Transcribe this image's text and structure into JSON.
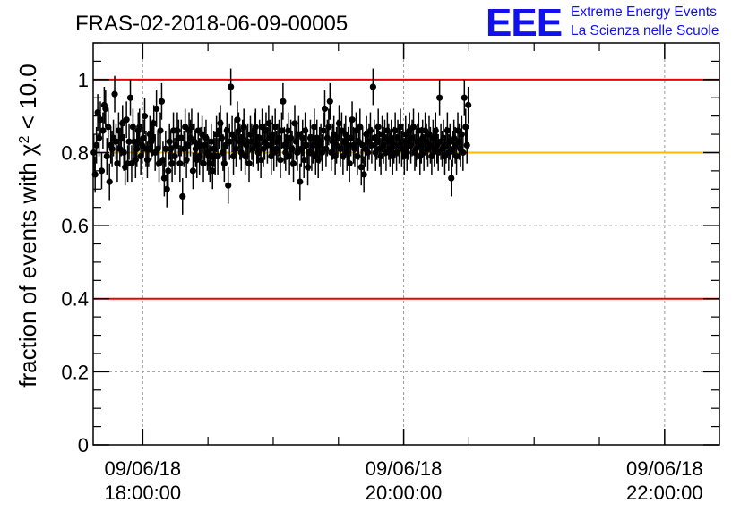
{
  "header": {
    "title": "FRAS-02-2018-06-09-00005",
    "logo_mark": "EEE",
    "logo_line1": "Extreme Energy Events",
    "logo_line2": "La Scienza nelle Scuole",
    "logo_color": "#1111ee"
  },
  "chart_data": {
    "type": "scatter",
    "title": "FRAS-02-2018-06-09-00005",
    "ylabel_prefix": "fraction of events with ",
    "ylabel_symbol": "χ",
    "ylabel_exp": "2",
    "ylabel_suffix": " < 10.0",
    "xlabel": "",
    "x_unit": "hours since 09/06/18 00:00 (time axis)",
    "xlim": [
      17.62,
      22.42
    ],
    "ylim": [
      0,
      1.1
    ],
    "grid": true,
    "x_ticks": [
      {
        "value": 18.0,
        "date": "09/06/18",
        "time": "18:00:00"
      },
      {
        "value": 20.0,
        "date": "09/06/18",
        "time": "20:00:00"
      },
      {
        "value": 22.0,
        "date": "09/06/18",
        "time": "22:00:00"
      }
    ],
    "x_minor_step": 0.5,
    "y_ticks": [
      {
        "value": 0,
        "label": "0"
      },
      {
        "value": 0.2,
        "label": "0.2"
      },
      {
        "value": 0.4,
        "label": "0.4"
      },
      {
        "value": 0.6,
        "label": "0.6"
      },
      {
        "value": 0.8,
        "label": "0.8"
      },
      {
        "value": 1.0,
        "label": "1"
      }
    ],
    "y_minor_step": 0.05,
    "reference_lines": [
      {
        "y": 1.0,
        "color": "#ee0000"
      },
      {
        "y": 0.8,
        "color": "#ffbb00"
      },
      {
        "y": 0.4,
        "color": "#ee0000"
      }
    ],
    "series": [
      {
        "marker_color": "#000000",
        "error_typ": 0.05,
        "x_start": 17.625,
        "x_step": 0.01,
        "values": [
          0.8,
          0.74,
          0.82,
          0.91,
          0.84,
          0.89,
          0.75,
          0.86,
          0.93,
          0.92,
          0.79,
          0.87,
          0.72,
          0.82,
          0.81,
          0.84,
          0.96,
          0.83,
          0.77,
          0.86,
          0.81,
          0.84,
          0.88,
          0.8,
          0.76,
          0.89,
          0.77,
          0.83,
          0.95,
          0.77,
          0.87,
          0.83,
          0.78,
          0.81,
          0.86,
          0.87,
          0.79,
          0.82,
          0.84,
          0.9,
          0.81,
          0.78,
          0.81,
          0.85,
          0.83,
          0.84,
          0.88,
          0.8,
          0.92,
          0.81,
          0.77,
          0.86,
          0.94,
          0.78,
          0.73,
          0.81,
          0.7,
          0.75,
          0.83,
          0.81,
          0.77,
          0.86,
          0.79,
          0.82,
          0.86,
          0.84,
          0.77,
          0.84,
          0.68,
          0.81,
          0.87,
          0.78,
          0.82,
          0.86,
          0.84,
          0.87,
          0.75,
          0.83,
          0.81,
          0.78,
          0.86,
          0.79,
          0.82,
          0.85,
          0.77,
          0.82,
          0.84,
          0.8,
          0.79,
          0.77,
          0.83,
          0.75,
          0.81,
          0.79,
          0.85,
          0.79,
          0.86,
          0.88,
          0.84,
          0.8,
          0.77,
          0.82,
          0.86,
          0.71,
          0.83,
          0.98,
          0.85,
          0.79,
          0.84,
          0.81,
          0.89,
          0.86,
          0.83,
          0.8,
          0.84,
          0.87,
          0.79,
          0.82,
          0.83,
          0.77,
          0.85,
          0.83,
          0.81,
          0.86,
          0.87,
          0.82,
          0.8,
          0.84,
          0.78,
          0.87,
          0.81,
          0.83,
          0.86,
          0.82,
          0.88,
          0.84,
          0.79,
          0.85,
          0.8,
          0.87,
          0.81,
          0.83,
          0.84,
          0.78,
          0.86,
          0.94,
          0.82,
          0.8,
          0.83,
          0.86,
          0.79,
          0.84,
          0.81,
          0.77,
          0.88,
          0.83,
          0.8,
          0.85,
          0.72,
          0.81,
          0.84,
          0.78,
          0.86,
          0.82,
          0.76,
          0.8,
          0.84,
          0.8,
          0.82,
          0.87,
          0.79,
          0.84,
          0.78,
          0.82,
          0.83,
          0.8,
          0.86,
          0.92,
          0.81,
          0.84,
          0.87,
          0.94,
          0.8,
          0.83,
          0.85,
          0.79,
          0.82,
          0.84,
          0.88,
          0.81,
          0.86,
          0.79,
          0.83,
          0.85,
          0.8,
          0.82,
          0.77,
          0.84,
          0.89,
          0.82,
          0.81,
          0.86,
          0.79,
          0.83,
          0.87,
          0.76,
          0.82,
          0.74,
          0.81,
          0.85,
          0.8,
          0.83,
          0.86,
          0.82,
          0.98,
          0.84,
          0.8,
          0.83,
          0.87,
          0.81,
          0.79,
          0.85,
          0.82,
          0.84,
          0.8,
          0.86,
          0.83,
          0.81,
          0.84,
          0.79,
          0.82,
          0.86,
          0.8,
          0.84,
          0.82,
          0.87,
          0.81,
          0.83,
          0.79,
          0.85,
          0.8,
          0.83,
          0.86,
          0.82,
          0.84,
          0.87,
          0.8,
          0.81,
          0.83,
          0.86,
          0.79,
          0.82,
          0.84,
          0.8,
          0.86,
          0.83,
          0.81,
          0.85,
          0.82,
          0.79,
          0.84,
          0.81,
          0.86,
          0.82,
          0.8,
          0.95,
          0.83,
          0.81,
          0.84,
          0.79,
          0.82,
          0.86,
          0.8,
          0.83,
          0.73,
          0.81,
          0.84,
          0.82,
          0.79,
          0.86,
          0.83,
          0.81,
          0.85,
          0.8,
          0.95,
          0.87,
          0.82,
          0.93
        ]
      }
    ]
  }
}
